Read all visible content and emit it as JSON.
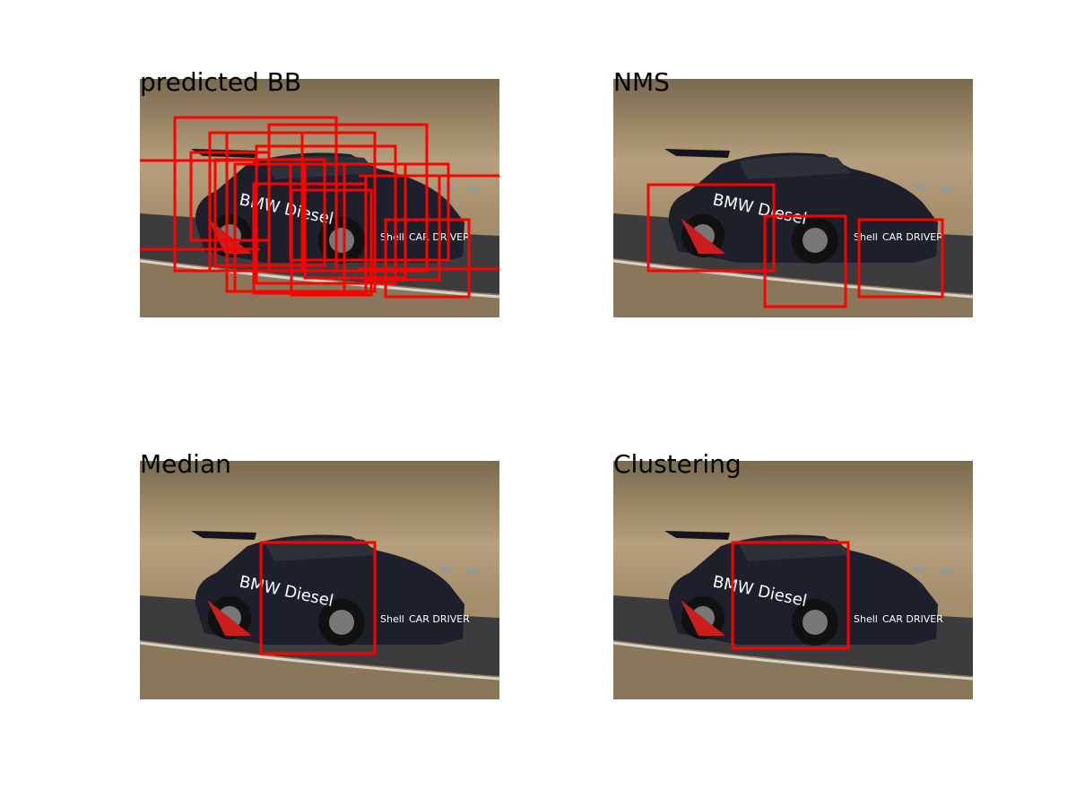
{
  "panels": [
    {
      "title": "predicted BB"
    },
    {
      "title": "NMS"
    },
    {
      "title": "Median"
    },
    {
      "title": "Clustering"
    }
  ]
}
